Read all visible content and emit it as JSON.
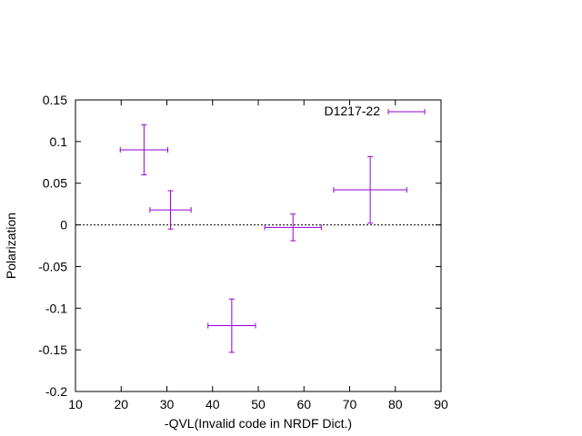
{
  "chart_data": {
    "type": "scatter",
    "title": "",
    "xlabel": "-QVL(Invalid code in NRDF Dict.)",
    "ylabel": "Polarization",
    "xlim": [
      10,
      90
    ],
    "ylim": [
      -0.2,
      0.15
    ],
    "x_ticks": [
      "10",
      "20",
      "30",
      "40",
      "50",
      "60",
      "70",
      "80",
      "90"
    ],
    "y_ticks": [
      "0.15",
      "0.1",
      "0.05",
      "0",
      "-0.05",
      "-0.1",
      "-0.15",
      "-0.2"
    ],
    "x_tick_values": [
      10,
      20,
      30,
      40,
      50,
      60,
      70,
      80,
      90
    ],
    "y_tick_values": [
      0.15,
      0.1,
      0.05,
      0,
      -0.05,
      -0.1,
      -0.15,
      -0.2
    ],
    "zero_line": true,
    "grid": false,
    "legend_position": "top-right",
    "series": [
      {
        "name": "D1217-22",
        "color": "#9400d3",
        "points": [
          {
            "x": 25.0,
            "y": 0.09,
            "xerr": 5.2,
            "yerr": 0.03
          },
          {
            "x": 30.8,
            "y": 0.018,
            "xerr": 4.5,
            "yerr": 0.023
          },
          {
            "x": 44.2,
            "y": -0.121,
            "xerr": 5.2,
            "yerr": 0.032
          },
          {
            "x": 57.6,
            "y": -0.003,
            "xerr": 6.2,
            "yerr": 0.016
          },
          {
            "x": 74.5,
            "y": 0.042,
            "xerr": 8.0,
            "yerr": 0.04
          }
        ]
      }
    ]
  }
}
